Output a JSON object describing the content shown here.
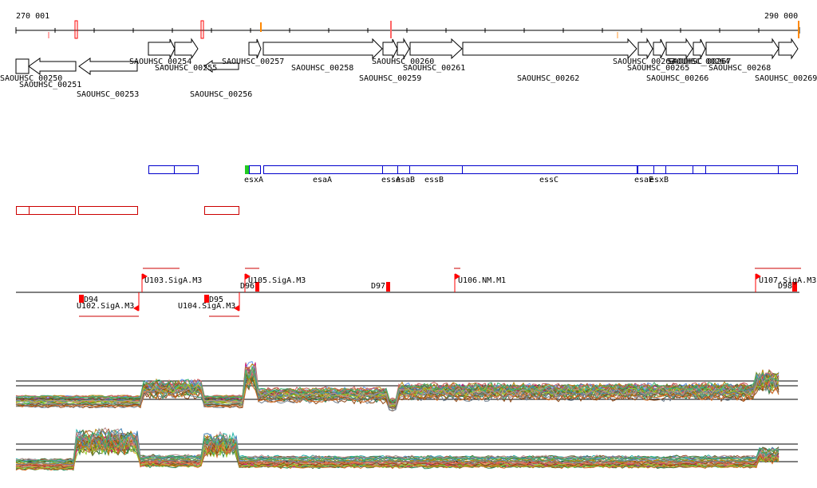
{
  "axis": {
    "start_label": "270 001",
    "end_label": "290 000",
    "start": 270001,
    "end": 290000
  },
  "colors": {
    "ink": "#000000",
    "blue": "#0000cc",
    "red": "#cc0000",
    "bright_red": "#ff0000",
    "green": "#22cc22",
    "orange": "#ff8800"
  },
  "genes_top": [
    {
      "label": "SAOUHSC_00254",
      "strand": "+"
    },
    {
      "label": "SAOUHSC_00255",
      "strand": "+"
    },
    {
      "label": "SAOUHSC_00257",
      "strand": "+"
    },
    {
      "label": "SAOUHSC_00258",
      "strand": "+"
    },
    {
      "label": "SAOUHSC_00260",
      "strand": "+"
    },
    {
      "label": "SAOUHSC_00259",
      "strand": "+"
    },
    {
      "label": "SAOUHSC_00261",
      "strand": "+"
    },
    {
      "label": "SAOUHSC_00262",
      "strand": "+"
    },
    {
      "label": "SAOUHSC_00263",
      "strand": "+"
    },
    {
      "label": "SAOUHSC_00264",
      "strand": "+"
    },
    {
      "label": "SAOUHSC_00265",
      "strand": "+"
    },
    {
      "label": "SAOUHSC_00266",
      "strand": "+"
    },
    {
      "label": "SAOUHSC_00267",
      "strand": "+"
    },
    {
      "label": "SAOUHSC_00268",
      "strand": "+"
    },
    {
      "label": "SAOUHSC_00269",
      "strand": "+"
    }
  ],
  "genes_bottom": [
    {
      "label": "SAOUHSC_00250",
      "strand": "-"
    },
    {
      "label": "SAOUHSC_00251",
      "strand": "-"
    },
    {
      "label": "SAOUHSC_00253",
      "strand": "-"
    },
    {
      "label": "SAOUHSC_00256",
      "strand": "-"
    }
  ],
  "gene_names": [
    "esxA",
    "esaA",
    "esaB",
    "essA",
    "essB",
    "essC",
    "esaE",
    "esxB"
  ],
  "promoters_top": [
    "U103.SigA.M3",
    "U105.SigA.M3",
    "U106.NM.M1",
    "U107.SigA.M3"
  ],
  "promoters_bottom": [
    "U102.SigA.M3",
    "U104.SigA.M3"
  ],
  "terminators": [
    "D94",
    "D95",
    "D96",
    "D97",
    "D98"
  ],
  "expression_panels": [
    {
      "name": "expression-profile-1"
    },
    {
      "name": "expression-profile-2"
    }
  ]
}
